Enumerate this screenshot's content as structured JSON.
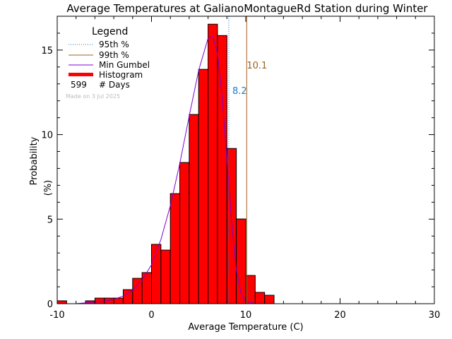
{
  "chart_data": {
    "type": "bar",
    "title": "Average Temperatures at GalianoMontagueRd Station during Winter",
    "xlabel": "Average Temperature (C)",
    "ylabel": "Probability",
    "ylabel_unit": "(%)",
    "xlim": [
      -10,
      30
    ],
    "ylim": [
      0,
      17
    ],
    "x_ticks": [
      -10,
      0,
      10,
      20,
      30
    ],
    "y_ticks": [
      0,
      5,
      10,
      15
    ],
    "bin_width": 1,
    "bins": [
      {
        "x": -10,
        "value": 0.17
      },
      {
        "x": -7,
        "value": 0.17
      },
      {
        "x": -6,
        "value": 0.33
      },
      {
        "x": -5,
        "value": 0.33
      },
      {
        "x": -4,
        "value": 0.33
      },
      {
        "x": -3,
        "value": 0.83
      },
      {
        "x": -2,
        "value": 1.5
      },
      {
        "x": -1,
        "value": 1.84
      },
      {
        "x": 0,
        "value": 3.51
      },
      {
        "x": 1,
        "value": 3.17
      },
      {
        "x": 2,
        "value": 6.51
      },
      {
        "x": 3,
        "value": 8.35
      },
      {
        "x": 4,
        "value": 11.19
      },
      {
        "x": 5,
        "value": 13.86
      },
      {
        "x": 6,
        "value": 16.53
      },
      {
        "x": 7,
        "value": 15.86
      },
      {
        "x": 8,
        "value": 9.18
      },
      {
        "x": 9,
        "value": 5.01
      },
      {
        "x": 10,
        "value": 1.67
      },
      {
        "x": 11,
        "value": 0.67
      },
      {
        "x": 12,
        "value": 0.5
      }
    ],
    "gumbel_curve": [
      [
        -8.0,
        0.0
      ],
      [
        -6.0,
        0.1
      ],
      [
        -5.0,
        0.15
      ],
      [
        -4.0,
        0.25
      ],
      [
        -3.0,
        0.45
      ],
      [
        -2.0,
        0.8
      ],
      [
        -1.0,
        1.4
      ],
      [
        0.0,
        2.3
      ],
      [
        1.0,
        3.8
      ],
      [
        2.0,
        5.8
      ],
      [
        3.0,
        8.3
      ],
      [
        4.0,
        11.1
      ],
      [
        5.0,
        13.8
      ],
      [
        6.0,
        15.7
      ],
      [
        6.5,
        15.8
      ],
      [
        7.0,
        14.8
      ],
      [
        7.5,
        12.2
      ],
      [
        8.0,
        8.5
      ],
      [
        8.5,
        4.8
      ],
      [
        9.0,
        2.0
      ],
      [
        9.5,
        0.6
      ],
      [
        10.0,
        0.15
      ],
      [
        11.0,
        0.0
      ]
    ],
    "p95": {
      "x": 8.2,
      "label": "8.2",
      "color": "#1a7ec8"
    },
    "p99": {
      "x": 10.1,
      "label": "10.1",
      "color": "#a0621e"
    },
    "colors": {
      "bar_fill": "#ff0000",
      "bar_edge": "#000000",
      "curve": "#7f00d4",
      "axis": "#000000"
    },
    "legend": {
      "title": "Legend",
      "placement": "top-left",
      "items": [
        {
          "label": "95th %",
          "style": "dotted",
          "color": "#1a7ec8"
        },
        {
          "label": "99th %",
          "style": "solid",
          "color": "#a0621e"
        },
        {
          "label": "Min Gumbel",
          "style": "solid",
          "color": "#7f00d4"
        },
        {
          "label": "Histogram",
          "style": "bar",
          "color": "#ff0000"
        }
      ],
      "days_count": "599",
      "days_label": "# Days"
    },
    "note": "Made on 3 Jul 2025"
  }
}
